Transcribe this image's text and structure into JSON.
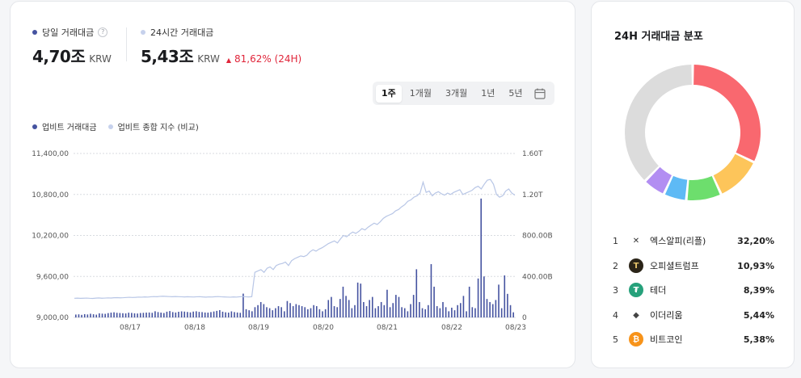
{
  "stats": {
    "today": {
      "label": "당일 거래대금",
      "value": "4,70조",
      "unit": "KRW",
      "dot_color": "#4553a0"
    },
    "h24": {
      "label": "24시간 거래대금",
      "value": "5,43조",
      "unit": "KRW",
      "change": "81,62% (24H)",
      "dot_color": "#c6d1ec"
    }
  },
  "range_tabs": [
    "1주",
    "1개월",
    "3개월",
    "1년",
    "5년"
  ],
  "legend": [
    {
      "label": "업비트 거래대금",
      "color": "#4553a0"
    },
    {
      "label": "업비트 종합 지수 (비교)",
      "color": "#c6d1ec"
    }
  ],
  "chart_data": {
    "type": "bar+line",
    "x_ticks": [
      "08/17",
      "08/18",
      "08/19",
      "08/20",
      "08/21",
      "08/22",
      "08/23"
    ],
    "left_axis": {
      "ticks": [
        "11,400,00",
        "10,800,00",
        "10,200,00",
        "9,600,00",
        "9,000,00"
      ],
      "ylim": [
        9000,
        11400
      ]
    },
    "right_axis": {
      "ticks": [
        "1.60T",
        "1.20T",
        "800.00B",
        "400.00B",
        "0"
      ],
      "ylim": [
        0,
        1600
      ]
    },
    "index_series": [
      9280,
      9282,
      9279,
      9281,
      9283,
      9280,
      9278,
      9282,
      9285,
      9281,
      9283,
      9286,
      9284,
      9288,
      9290,
      9287,
      9289,
      9292,
      9295,
      9292,
      9294,
      9298,
      9296,
      9300,
      9298,
      9302,
      9305,
      9303,
      9308,
      9310,
      9307,
      9305,
      9303,
      9306,
      9304,
      9302,
      9300,
      9303,
      9301,
      9299,
      9302,
      9304,
      9300,
      9297,
      9301,
      9299,
      9303,
      9305,
      9302,
      9300,
      9298,
      9296,
      9300,
      9298,
      9302,
      9305,
      9302,
      9300,
      9303,
      9660,
      9680,
      9700,
      9660,
      9720,
      9740,
      9700,
      9760,
      9780,
      9790,
      9810,
      9760,
      9830,
      9860,
      9880,
      9900,
      9890,
      9910,
      9960,
      9990,
      9970,
      10000,
      10020,
      10050,
      10080,
      10100,
      10120,
      10090,
      10150,
      10200,
      10180,
      10220,
      10250,
      10230,
      10260,
      10300,
      10280,
      10320,
      10350,
      10380,
      10360,
      10400,
      10450,
      10480,
      10500,
      10520,
      10560,
      10580,
      10620,
      10650,
      10700,
      10720,
      10760,
      10780,
      10820,
      10980,
      10830,
      10850,
      10780,
      10820,
      10840,
      10810,
      10790,
      10820,
      10800,
      10830,
      10850,
      10870,
      10800,
      10820,
      10840,
      10860,
      10900,
      10920,
      10880,
      10950,
      11010,
      11020,
      10950,
      10800,
      10760,
      10780,
      10850,
      10880,
      10820,
      10790
    ],
    "volume_series": [
      28,
      30,
      25,
      32,
      29,
      36,
      31,
      27,
      40,
      37,
      35,
      42,
      47,
      50,
      45,
      43,
      41,
      39,
      46,
      44,
      40,
      38,
      43,
      45,
      47,
      48,
      45,
      60,
      52,
      47,
      43,
      56,
      62,
      52,
      48,
      55,
      59,
      57,
      53,
      49,
      57,
      60,
      54,
      52,
      48,
      47,
      52,
      58,
      64,
      71,
      56,
      50,
      47,
      59,
      52,
      48,
      45,
      232,
      80,
      70,
      60,
      100,
      120,
      150,
      130,
      100,
      90,
      70,
      90,
      110,
      100,
      60,
      160,
      140,
      110,
      130,
      120,
      110,
      100,
      80,
      90,
      120,
      110,
      80,
      60,
      80,
      170,
      200,
      110,
      100,
      180,
      300,
      210,
      170,
      90,
      120,
      340,
      330,
      150,
      110,
      170,
      200,
      90,
      110,
      150,
      120,
      270,
      100,
      140,
      220,
      200,
      100,
      90,
      60,
      130,
      220,
      470,
      150,
      90,
      80,
      120,
      520,
      300,
      110,
      90,
      150,
      100,
      60,
      95,
      70,
      120,
      140,
      210,
      60,
      300,
      100,
      90,
      380,
      1160,
      400,
      180,
      150,
      130,
      170,
      320,
      90,
      410,
      230,
      120,
      50
    ]
  },
  "distribution": {
    "title": "24H 거래대금 분포",
    "donut": [
      {
        "pct": 32.2,
        "color": "#f9686f"
      },
      {
        "pct": 10.93,
        "color": "#fdc55a"
      },
      {
        "pct": 8.39,
        "color": "#6dde6d"
      },
      {
        "pct": 5.44,
        "color": "#5ebaf5"
      },
      {
        "pct": 5.38,
        "color": "#b28ef2"
      },
      {
        "pct": 37.66,
        "color": "#dcdcdc"
      }
    ],
    "items": [
      {
        "rank": "1",
        "name": "엑스알피(리플)",
        "pct": "32,20%",
        "icon": "xrp-icon",
        "icon_color": "#f2f2f2"
      },
      {
        "rank": "2",
        "name": "오피셜트럼프",
        "pct": "10,93%",
        "icon": "trump-icon",
        "icon_color": "#2b2418"
      },
      {
        "rank": "3",
        "name": "테더",
        "pct": "8,39%",
        "icon": "tether-icon",
        "icon_color": "#26a17b"
      },
      {
        "rank": "4",
        "name": "이더리움",
        "pct": "5,44%",
        "icon": "ethereum-icon",
        "icon_color": "#ffffff"
      },
      {
        "rank": "5",
        "name": "비트코인",
        "pct": "5,38%",
        "icon": "bitcoin-icon",
        "icon_color": "#f7931a"
      }
    ]
  }
}
